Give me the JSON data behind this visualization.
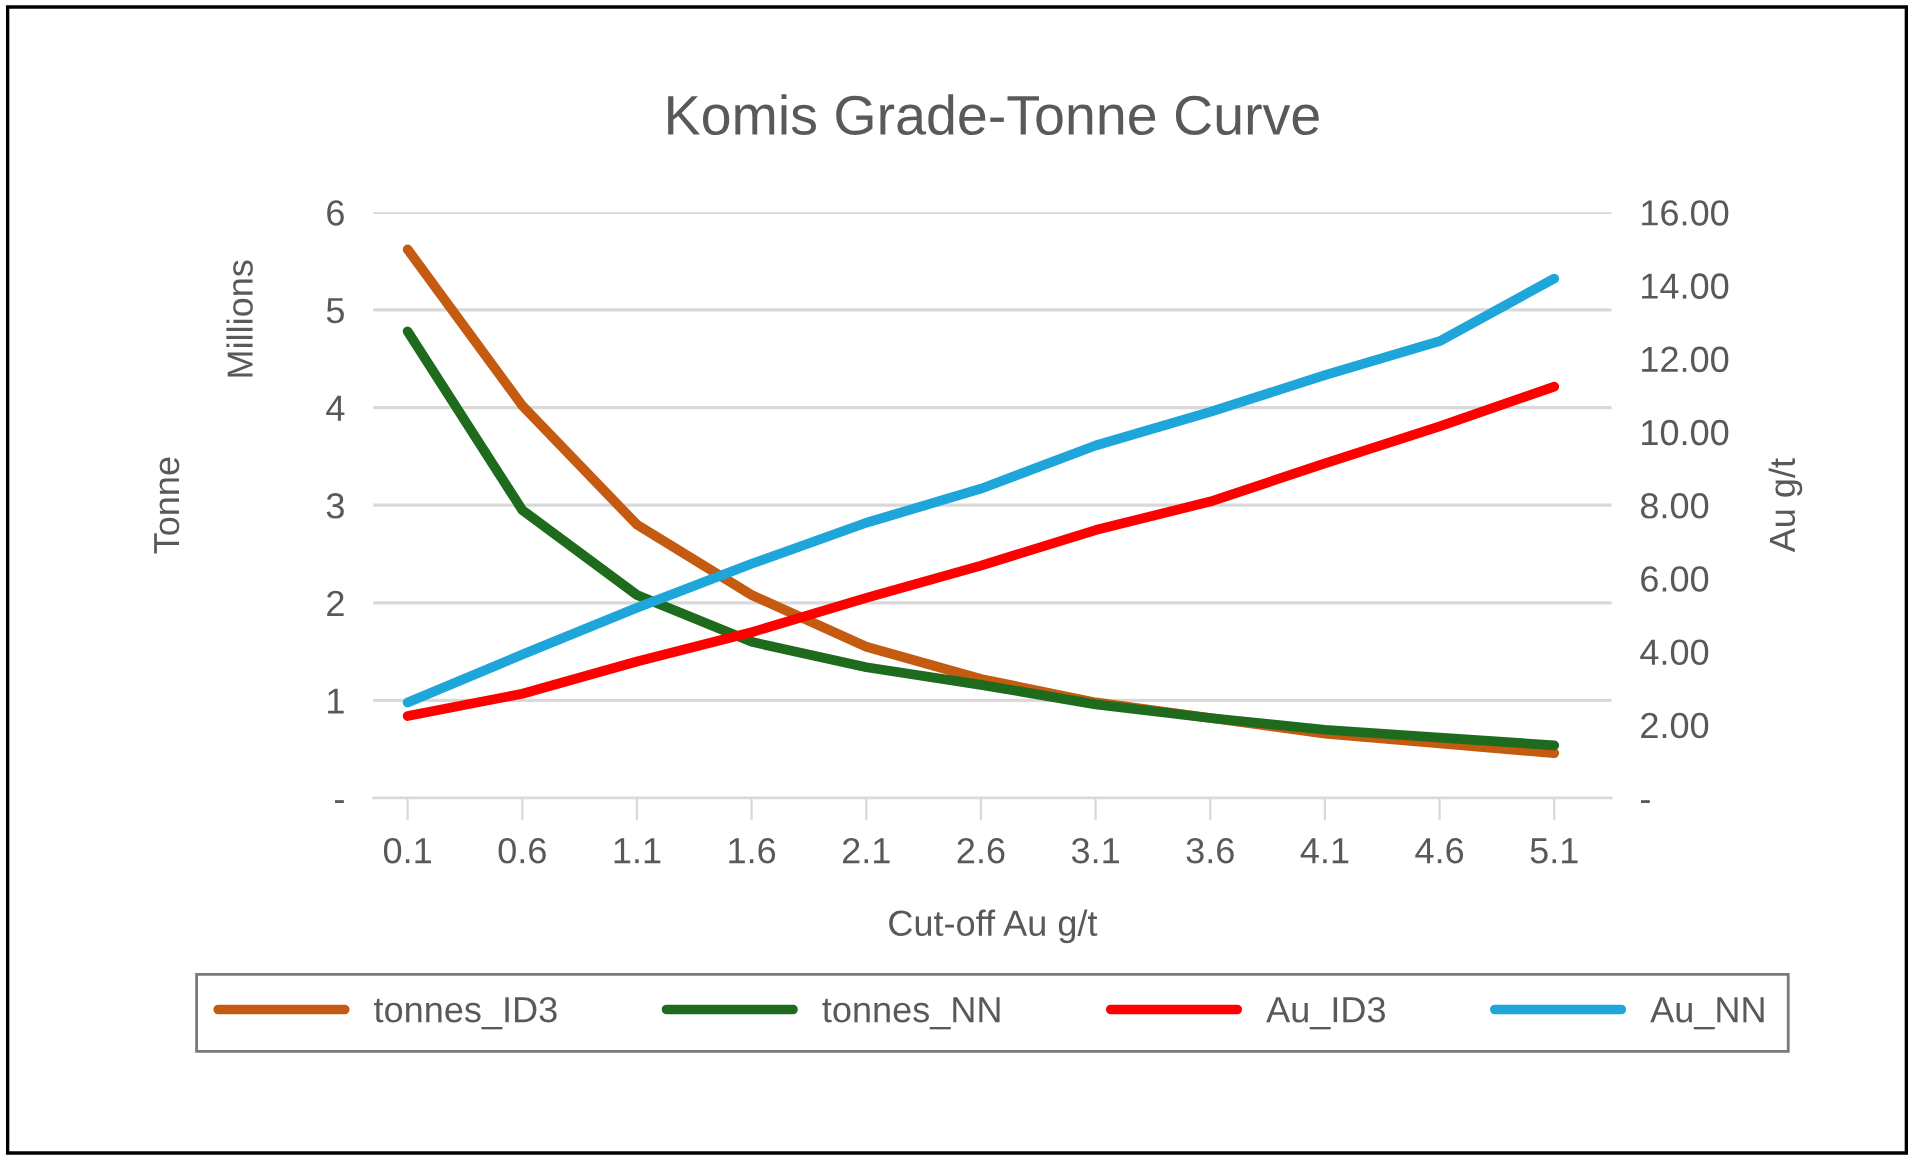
{
  "chart_data": {
    "type": "line",
    "title": "Komis Grade-Tonne Curve",
    "xlabel": "Cut-off Au g/t",
    "ylabel": "Tonne",
    "y2label": "Au g/t",
    "annotations": [
      "Millions"
    ],
    "categories": [
      "0.1",
      "0.6",
      "1.1",
      "1.6",
      "2.1",
      "2.6",
      "3.1",
      "3.6",
      "4.1",
      "4.6",
      "5.1"
    ],
    "series": [
      {
        "name": "tonnes_ID3",
        "color": "#c55a11",
        "values": [
          5.62,
          4.02,
          2.8,
          2.08,
          1.55,
          1.22,
          0.98,
          0.82,
          0.66,
          0.56,
          0.46
        ]
      },
      {
        "name": "tonnes_NN",
        "color": "#1e6b1e",
        "values": [
          4.78,
          2.95,
          2.08,
          1.6,
          1.34,
          1.16,
          0.96,
          0.82,
          0.7,
          0.62,
          0.54
        ]
      },
      {
        "name": "Au_ID3",
        "color": "#ff0000",
        "axis": "y2",
        "values": [
          2.24,
          2.85,
          3.73,
          4.53,
          5.47,
          6.35,
          7.32,
          8.1,
          9.14,
          10.15,
          11.24
        ]
      },
      {
        "name": "Au_NN",
        "color": "#1ea5d9",
        "axis": "y2",
        "values": [
          2.61,
          3.92,
          5.2,
          6.4,
          7.52,
          8.45,
          9.63,
          10.55,
          11.55,
          12.48,
          14.19
        ]
      }
    ],
    "ylim": [
      0,
      6
    ],
    "yticks": [
      {
        "value": 0,
        "label": "-"
      },
      1,
      2,
      3,
      4,
      5,
      6
    ],
    "y2lim": [
      0,
      16
    ],
    "y2ticks": [
      {
        "value": 0,
        "label": "-"
      },
      {
        "value": 2,
        "label": "2.00"
      },
      {
        "value": 4,
        "label": "4.00"
      },
      {
        "value": 6,
        "label": "6.00"
      },
      {
        "value": 8,
        "label": "8.00"
      },
      {
        "value": 10,
        "label": "10.00"
      },
      {
        "value": 12,
        "label": "12.00"
      },
      {
        "value": 14,
        "label": "14.00"
      },
      {
        "value": 16,
        "label": "16.00"
      }
    ],
    "grid": "y",
    "legend": "bottom",
    "marker": "none",
    "line_style": "solid"
  }
}
